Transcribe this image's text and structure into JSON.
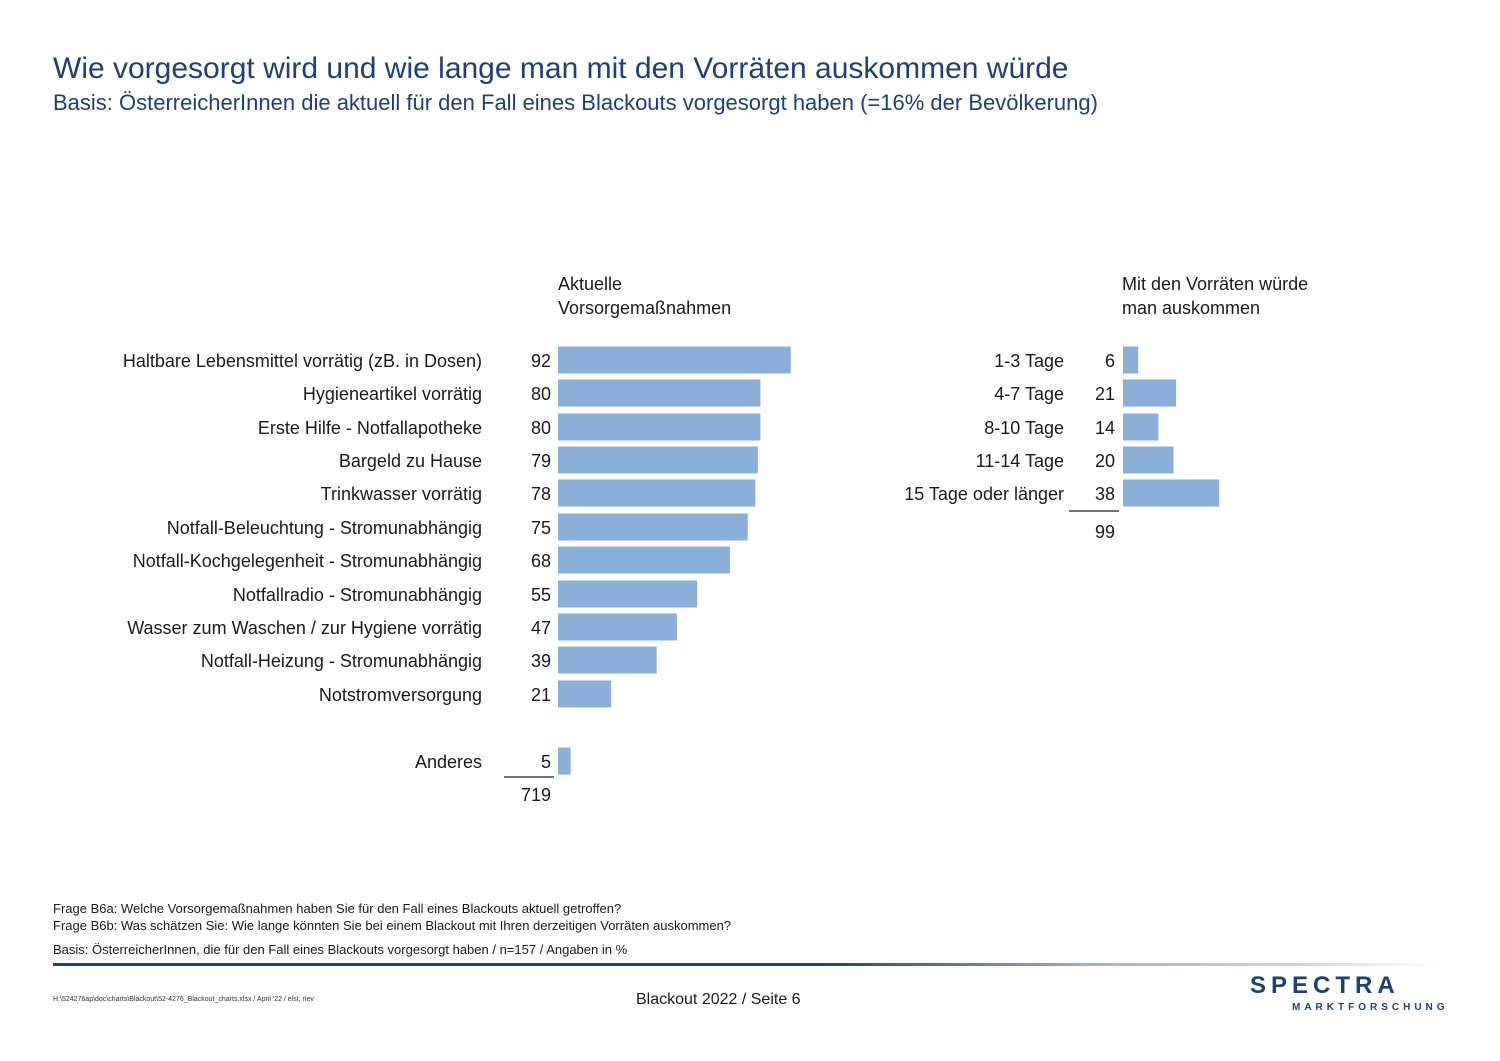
{
  "header": {
    "title": "Wie vorgesorgt wird und wie lange man mit den Vorräten auskommen würde",
    "subtitle": "Basis: ÖsterreicherInnen die aktuell für den Fall eines Blackouts vorgesorgt haben (=16% der Bevölkerung)"
  },
  "chart_data": [
    {
      "type": "bar",
      "orientation": "horizontal",
      "heading": [
        "Aktuelle",
        "Vorsorgemaßnahmen"
      ],
      "categories": [
        "Haltbare Lebensmittel vorrätig (zB. in Dosen)",
        "Hygieneartikel vorrätig",
        "Erste Hilfe - Notfallapotheke",
        "Bargeld zu Hause",
        "Trinkwasser vorrätig",
        "Notfall-Beleuchtung - Stromunabhängig",
        "Notfall-Kochgelegenheit - Stromunabhängig",
        "Notfallradio - Stromunabhängig",
        "Wasser zum Waschen / zur Hygiene vorrätig",
        "Notfall-Heizung - Stromunabhängig",
        "Notstromversorgung",
        "Anderes"
      ],
      "values": [
        92,
        80,
        80,
        79,
        78,
        75,
        68,
        55,
        47,
        39,
        21,
        5
      ],
      "total": "719",
      "color": "#8aafd9"
    },
    {
      "type": "bar",
      "orientation": "horizontal",
      "heading": [
        "Mit den Vorräten würde",
        "man auskommen"
      ],
      "categories": [
        "1-3 Tage",
        "4-7 Tage",
        "8-10 Tage",
        "11-14 Tage",
        "15 Tage oder länger"
      ],
      "values": [
        6,
        21,
        14,
        20,
        38
      ],
      "total": "99",
      "color": "#8aafd9"
    }
  ],
  "footnotes": {
    "q1": "Frage B6a: Welche Vorsorgemaßnahmen haben Sie für den Fall eines Blackouts aktuell getroffen?",
    "q2": "Frage B6b: Was schätzen Sie: Wie lange könnten Sie bei einem Blackout mit Ihren derzeitigen Vorräten auskommen?",
    "basis": "Basis: ÖsterreicherInnen, die für den Fall eines Blackouts vorgesorgt haben / n=157 / Angaben in %"
  },
  "footer": {
    "path": "H:\\524276ap\\doc\\charts\\Blackout\\52-4276_Blackout_charts.xlsx / April '22 / elst, riev",
    "page": "Blackout 2022  /  Seite  6",
    "logo_main": "SPECTRA",
    "logo_sub": "MARKTFORSCHUNG"
  },
  "colors": {
    "accent": "#1d3f7a",
    "bar": "#8aafd9"
  }
}
